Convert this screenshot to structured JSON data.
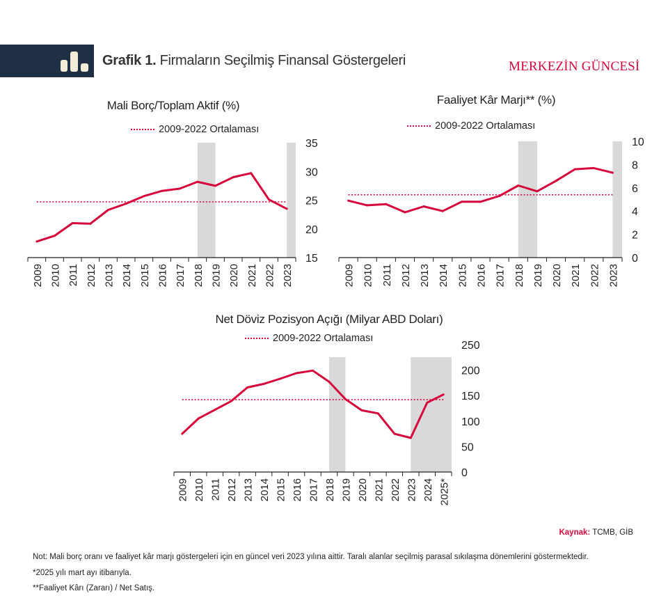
{
  "header": {
    "title_bold": "Grafik 1.",
    "title": "Firmaların Seçilmiş Finansal Göstergeleri",
    "brand": "MERKEZİN GÜNCESİ",
    "icon": "bar-chart-icon"
  },
  "colors": {
    "line": "#d6083b",
    "shade": "#d9d9d9",
    "header_bg": "#1f3044",
    "brand": "#d6083b"
  },
  "chart_data": [
    {
      "type": "line",
      "title": "Mali Borç/Toplam Aktif (%)",
      "legend": "2009-2022 Ortalaması",
      "categories": [
        "2009",
        "2010",
        "2011",
        "2012",
        "2013",
        "2014",
        "2015",
        "2016",
        "2017",
        "2018",
        "2019",
        "2020",
        "2021",
        "2022",
        "2023"
      ],
      "values": [
        17.8,
        18.8,
        21.0,
        20.9,
        23.3,
        24.4,
        25.7,
        26.6,
        27.0,
        28.2,
        27.5,
        29.0,
        29.7,
        25.1,
        23.5
      ],
      "average": 24.7,
      "ylim": [
        15,
        35
      ],
      "yticks": [
        "15",
        "20",
        "25",
        "30",
        "35"
      ],
      "shaded_periods": [
        [
          "2018",
          "2019"
        ],
        [
          "2023",
          null
        ]
      ],
      "ylabel_side": "right"
    },
    {
      "type": "line",
      "title": "Faaliyet Kâr Marjı** (%)",
      "legend": "2009-2022 Ortalaması",
      "categories": [
        "2009",
        "2010",
        "2011",
        "2012",
        "2013",
        "2014",
        "2015",
        "2016",
        "2017",
        "2018",
        "2019",
        "2020",
        "2021",
        "2022",
        "2023"
      ],
      "values": [
        4.9,
        4.5,
        4.6,
        3.9,
        4.4,
        4.0,
        4.8,
        4.8,
        5.3,
        6.2,
        5.7,
        6.6,
        7.6,
        7.7,
        7.3
      ],
      "average": 5.4,
      "ylim": [
        0,
        10
      ],
      "yticks": [
        "0",
        "2",
        "4",
        "6",
        "8",
        "10"
      ],
      "shaded_periods": [
        [
          "2018",
          "2019"
        ],
        [
          "2023",
          null
        ]
      ],
      "ylabel_side": "right"
    },
    {
      "type": "line",
      "title": "Net Döviz Pozisyon Açığı (Milyar ABD Doları)",
      "legend": "2009-2022 Ortalaması",
      "categories": [
        "2009",
        "2010",
        "2011",
        "2012",
        "2013",
        "2014",
        "2015",
        "2016",
        "2017",
        "2018",
        "2019",
        "2020",
        "2021",
        "2022",
        "2023",
        "2024",
        "2025*"
      ],
      "values": [
        75,
        105,
        122,
        139,
        166,
        173,
        183,
        194,
        199,
        177,
        143,
        121,
        115,
        75,
        67,
        136,
        152
      ],
      "average": 142,
      "ylim": [
        0,
        250
      ],
      "yticks": [
        "0",
        "50",
        "100",
        "150",
        "200",
        "250"
      ],
      "shaded_periods": [
        [
          "2018",
          "2019"
        ],
        [
          "2023",
          null
        ]
      ],
      "ylabel_side": "right"
    }
  ],
  "footer": {
    "source_label": "Kaynak:",
    "source": "TCMB, GİB",
    "notes": [
      "Not: Mali borç oranı ve faaliyet kâr marjı göstergeleri için en güncel veri 2023 yılına aittir. Taralı alanlar seçilmiş parasal sıkılaşma dönemlerini göstermektedir.",
      "*2025 yılı mart ayı itibarıyla.",
      "**Faaliyet Kârı (Zararı) / Net Satış."
    ]
  }
}
